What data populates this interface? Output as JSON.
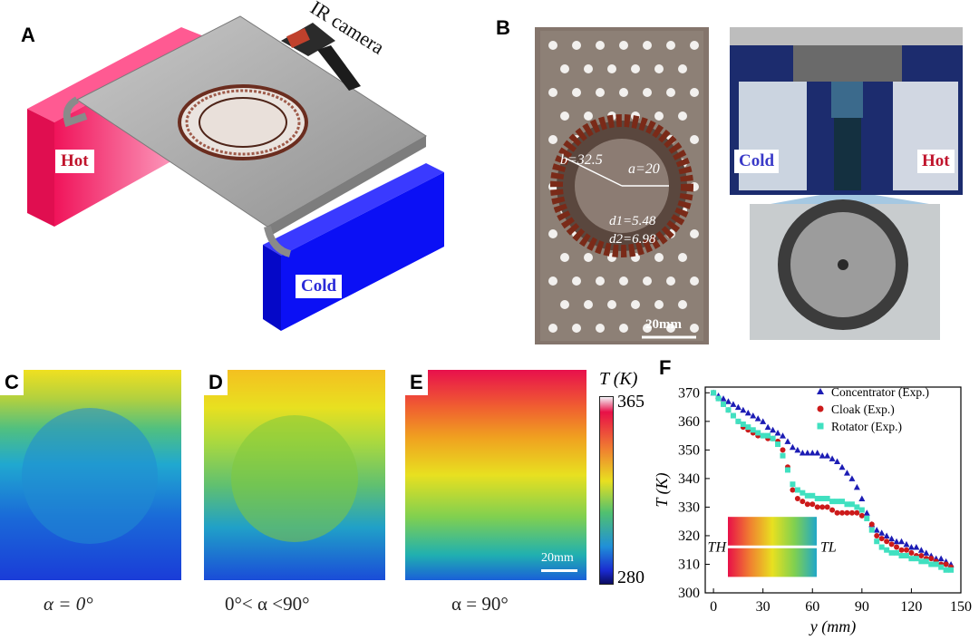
{
  "panel_labels": {
    "a": "A",
    "b": "B",
    "c": "C",
    "d": "D",
    "e": "E",
    "f": "F"
  },
  "panel_a": {
    "hot_label": "Hot",
    "cold_label": "Cold",
    "camera_label": "IR camera",
    "colors": {
      "hot": "#f0135a",
      "cold": "#0b10f5",
      "plate": "#a9a9a9"
    }
  },
  "panel_b": {
    "dim_b": "b=32.5",
    "dim_a": "a=20",
    "dim_d1": "d1=5.48",
    "dim_d2": "d2=6.98",
    "scale_bar": "20mm",
    "cold_label": "Cold",
    "hot_label": "Hot"
  },
  "panel_cde": {
    "captions": [
      "α = 0°",
      "0°< α <90°",
      "α = 90°"
    ],
    "scale_bar": "20mm",
    "colorbar": {
      "title": "T (K)",
      "max": "365",
      "min": "280"
    }
  },
  "chart_data": {
    "type": "scatter",
    "xlabel": "y (mm)",
    "ylabel": "T (K)",
    "xlim": [
      -5,
      150
    ],
    "ylim": [
      300,
      372
    ],
    "xticks": [
      0,
      30,
      60,
      90,
      120,
      150
    ],
    "yticks": [
      300,
      310,
      320,
      330,
      340,
      350,
      360,
      370
    ],
    "inset": {
      "left_label": "TH",
      "right_label": "TL"
    },
    "series": [
      {
        "name": "Concentrator (Exp.)",
        "marker": "triangle",
        "color": "#1c1cb4",
        "x": [
          0,
          3,
          6,
          9,
          12,
          15,
          18,
          21,
          24,
          27,
          30,
          33,
          36,
          39,
          42,
          45,
          48,
          51,
          54,
          57,
          60,
          63,
          66,
          69,
          72,
          75,
          78,
          81,
          84,
          87,
          90,
          93,
          96,
          99,
          102,
          105,
          108,
          111,
          114,
          117,
          120,
          123,
          126,
          129,
          132,
          135,
          138,
          141,
          144
        ],
        "y": [
          370,
          369,
          368,
          367,
          366,
          365,
          364,
          363,
          362,
          361,
          360,
          358,
          357,
          356,
          355,
          353,
          351,
          350,
          349,
          349,
          349,
          349,
          348,
          348,
          347,
          346,
          344,
          342,
          340,
          337,
          333,
          328,
          324,
          322,
          321,
          320,
          319,
          318,
          318,
          317,
          316,
          316,
          315,
          314,
          313,
          312,
          312,
          311,
          310
        ]
      },
      {
        "name": "Cloak (Exp.)",
        "marker": "circle",
        "color": "#cc1a1a",
        "x": [
          0,
          3,
          6,
          9,
          12,
          15,
          18,
          21,
          24,
          27,
          30,
          33,
          36,
          39,
          42,
          45,
          48,
          51,
          54,
          57,
          60,
          63,
          66,
          69,
          72,
          75,
          78,
          81,
          84,
          87,
          90,
          96,
          99,
          102,
          105,
          108,
          111,
          114,
          117,
          120,
          123,
          126,
          129,
          132,
          135,
          138,
          141,
          144
        ],
        "y": [
          370,
          368,
          366,
          364,
          362,
          360,
          358,
          357,
          356,
          355,
          355,
          354,
          354,
          353,
          350,
          344,
          336,
          333,
          332,
          331,
          331,
          330,
          330,
          330,
          329,
          328,
          328,
          328,
          328,
          328,
          327,
          324,
          320,
          319,
          318,
          317,
          316,
          315,
          315,
          314,
          313,
          313,
          312,
          312,
          311,
          310,
          310,
          309
        ]
      },
      {
        "name": "Rotator (Exp.)",
        "marker": "square",
        "color": "#40e0c0",
        "x": [
          0,
          3,
          6,
          9,
          12,
          15,
          18,
          21,
          24,
          27,
          30,
          33,
          36,
          39,
          42,
          45,
          48,
          51,
          54,
          57,
          60,
          63,
          66,
          69,
          72,
          75,
          78,
          81,
          84,
          87,
          90,
          93,
          96,
          99,
          102,
          105,
          108,
          111,
          114,
          117,
          120,
          123,
          126,
          129,
          132,
          135,
          138,
          141,
          144
        ],
        "y": [
          370,
          368,
          366,
          364,
          362,
          360,
          359,
          358,
          357,
          356,
          355,
          355,
          354,
          352,
          348,
          343,
          338,
          336,
          335,
          334,
          334,
          333,
          333,
          333,
          332,
          332,
          332,
          331,
          331,
          330,
          329,
          326,
          322,
          318,
          316,
          315,
          314,
          314,
          313,
          313,
          312,
          312,
          311,
          311,
          310,
          310,
          309,
          308,
          308
        ]
      }
    ]
  }
}
